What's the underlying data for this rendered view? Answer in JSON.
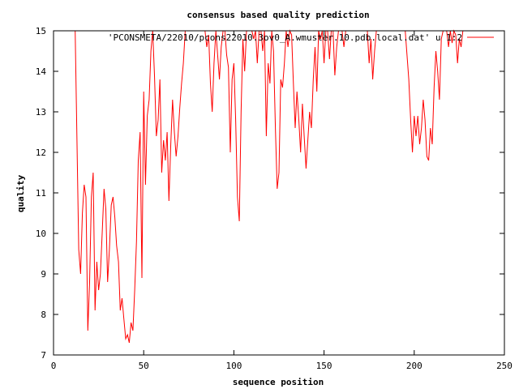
{
  "chart_data": {
    "type": "line",
    "title": "consensus based quality prediction",
    "xlabel": "sequence position",
    "ylabel": "quality",
    "xlim": [
      0,
      250
    ],
    "ylim": [
      7,
      15
    ],
    "x_ticks": [
      0,
      50,
      100,
      150,
      200,
      250
    ],
    "y_ticks": [
      7,
      8,
      9,
      10,
      11,
      12,
      13,
      14,
      15
    ],
    "x_tick_labels": [
      "0",
      "50",
      "100",
      "150",
      "200",
      "250"
    ],
    "y_tick_labels": [
      "7",
      "8",
      "9",
      "10",
      "11",
      "12",
      "13",
      "14",
      "15"
    ],
    "grid": false,
    "legend_position": "top-right",
    "series": [
      {
        "name": "'PCONSMETA/22010/pcons22010.3ov0_A.wmuster.10.pdb.local.dat' u 1:2",
        "color": "#ff0000",
        "points": [
          [
            12,
            15
          ],
          [
            13,
            12.3
          ],
          [
            14,
            9.6
          ],
          [
            15,
            9.0
          ],
          [
            16,
            10.5
          ],
          [
            17,
            11.2
          ],
          [
            18,
            10.9
          ],
          [
            19,
            7.6
          ],
          [
            20,
            8.8
          ],
          [
            21,
            10.9
          ],
          [
            22,
            11.5
          ],
          [
            23,
            8.1
          ],
          [
            24,
            9.3
          ],
          [
            25,
            8.6
          ],
          [
            26,
            9.0
          ],
          [
            27,
            10.0
          ],
          [
            28,
            11.1
          ],
          [
            29,
            10.6
          ],
          [
            30,
            8.8
          ],
          [
            31,
            9.6
          ],
          [
            32,
            10.7
          ],
          [
            33,
            10.9
          ],
          [
            34,
            10.4
          ],
          [
            35,
            9.7
          ],
          [
            36,
            9.3
          ],
          [
            37,
            8.1
          ],
          [
            38,
            8.4
          ],
          [
            39,
            7.9
          ],
          [
            40,
            7.4
          ],
          [
            41,
            7.5
          ],
          [
            42,
            7.3
          ],
          [
            43,
            7.8
          ],
          [
            44,
            7.6
          ],
          [
            45,
            8.6
          ],
          [
            46,
            9.8
          ],
          [
            47,
            11.8
          ],
          [
            48,
            12.5
          ],
          [
            49,
            8.9
          ],
          [
            50,
            13.5
          ],
          [
            51,
            11.2
          ],
          [
            52,
            12.9
          ],
          [
            53,
            13.3
          ],
          [
            54,
            14.5
          ],
          [
            55,
            15
          ],
          [
            56,
            13.9
          ],
          [
            57,
            12.4
          ],
          [
            58,
            12.8
          ],
          [
            59,
            13.8
          ],
          [
            60,
            11.5
          ],
          [
            61,
            12.3
          ],
          [
            62,
            11.8
          ],
          [
            63,
            12.5
          ],
          [
            64,
            10.8
          ],
          [
            65,
            12.2
          ],
          [
            66,
            13.3
          ],
          [
            67,
            12.5
          ],
          [
            68,
            11.9
          ],
          [
            69,
            12.4
          ],
          [
            70,
            13.1
          ],
          [
            71,
            13.7
          ],
          [
            72,
            14.2
          ],
          [
            73,
            15
          ],
          [
            75,
            15
          ],
          [
            80,
            15
          ],
          [
            84,
            15
          ],
          [
            85,
            14.6
          ],
          [
            86,
            14.9
          ],
          [
            87,
            13.7
          ],
          [
            88,
            13.0
          ],
          [
            89,
            14.2
          ],
          [
            90,
            15
          ],
          [
            91,
            14.4
          ],
          [
            92,
            13.8
          ],
          [
            93,
            14.6
          ],
          [
            94,
            15
          ],
          [
            95,
            15
          ],
          [
            96,
            14.4
          ],
          [
            97,
            14.1
          ],
          [
            98,
            12.0
          ],
          [
            99,
            13.8
          ],
          [
            100,
            14.2
          ],
          [
            101,
            12.8
          ],
          [
            102,
            10.9
          ],
          [
            103,
            10.3
          ],
          [
            104,
            13.0
          ],
          [
            105,
            14.8
          ],
          [
            106,
            14.0
          ],
          [
            107,
            15
          ],
          [
            108,
            15
          ],
          [
            109,
            15
          ],
          [
            110,
            15
          ],
          [
            111,
            14.8
          ],
          [
            112,
            15
          ],
          [
            113,
            14.2
          ],
          [
            114,
            15
          ],
          [
            115,
            15
          ],
          [
            116,
            14.5
          ],
          [
            117,
            15
          ],
          [
            118,
            12.4
          ],
          [
            119,
            14.2
          ],
          [
            120,
            13.7
          ],
          [
            121,
            15
          ],
          [
            122,
            14.5
          ],
          [
            123,
            12.6
          ],
          [
            124,
            11.1
          ],
          [
            125,
            11.5
          ],
          [
            126,
            13.8
          ],
          [
            127,
            13.6
          ],
          [
            128,
            14.2
          ],
          [
            129,
            15
          ],
          [
            130,
            14.6
          ],
          [
            131,
            15
          ],
          [
            132,
            14.9
          ],
          [
            133,
            13.7
          ],
          [
            134,
            12.6
          ],
          [
            135,
            13.5
          ],
          [
            136,
            12.8
          ],
          [
            137,
            12.0
          ],
          [
            138,
            13.2
          ],
          [
            139,
            12.4
          ],
          [
            140,
            11.6
          ],
          [
            141,
            12.3
          ],
          [
            142,
            13.0
          ],
          [
            143,
            12.6
          ],
          [
            144,
            13.8
          ],
          [
            145,
            14.6
          ],
          [
            146,
            13.5
          ],
          [
            147,
            15
          ],
          [
            148,
            14.8
          ],
          [
            149,
            15
          ],
          [
            150,
            14.2
          ],
          [
            151,
            15
          ],
          [
            152,
            15
          ],
          [
            153,
            14.3
          ],
          [
            154,
            15
          ],
          [
            155,
            15
          ],
          [
            156,
            13.9
          ],
          [
            157,
            14.6
          ],
          [
            158,
            15
          ],
          [
            159,
            15
          ],
          [
            160,
            15
          ],
          [
            161,
            14.6
          ],
          [
            162,
            15
          ],
          [
            165,
            15
          ],
          [
            170,
            15
          ],
          [
            174,
            15
          ],
          [
            175,
            14.2
          ],
          [
            176,
            14.8
          ],
          [
            177,
            13.8
          ],
          [
            178,
            14.5
          ],
          [
            179,
            15
          ],
          [
            182,
            15
          ],
          [
            188,
            15
          ],
          [
            195,
            15
          ],
          [
            196,
            14.4
          ],
          [
            197,
            13.8
          ],
          [
            198,
            12.8
          ],
          [
            199,
            12.0
          ],
          [
            200,
            12.9
          ],
          [
            201,
            12.4
          ],
          [
            202,
            12.9
          ],
          [
            203,
            12.2
          ],
          [
            204,
            12.6
          ],
          [
            205,
            13.3
          ],
          [
            206,
            12.8
          ],
          [
            207,
            11.9
          ],
          [
            208,
            11.8
          ],
          [
            209,
            12.6
          ],
          [
            210,
            12.2
          ],
          [
            211,
            13.6
          ],
          [
            212,
            14.5
          ],
          [
            213,
            14.0
          ],
          [
            214,
            13.3
          ],
          [
            215,
            14.8
          ],
          [
            216,
            15
          ],
          [
            217,
            15
          ],
          [
            218,
            15
          ],
          [
            219,
            14.6
          ],
          [
            220,
            15
          ],
          [
            221,
            14.7
          ],
          [
            222,
            15
          ],
          [
            223,
            14.9
          ],
          [
            224,
            14.2
          ],
          [
            225,
            14.8
          ],
          [
            226,
            14.6
          ],
          [
            227,
            15
          ],
          [
            228,
            15
          ]
        ]
      }
    ]
  }
}
